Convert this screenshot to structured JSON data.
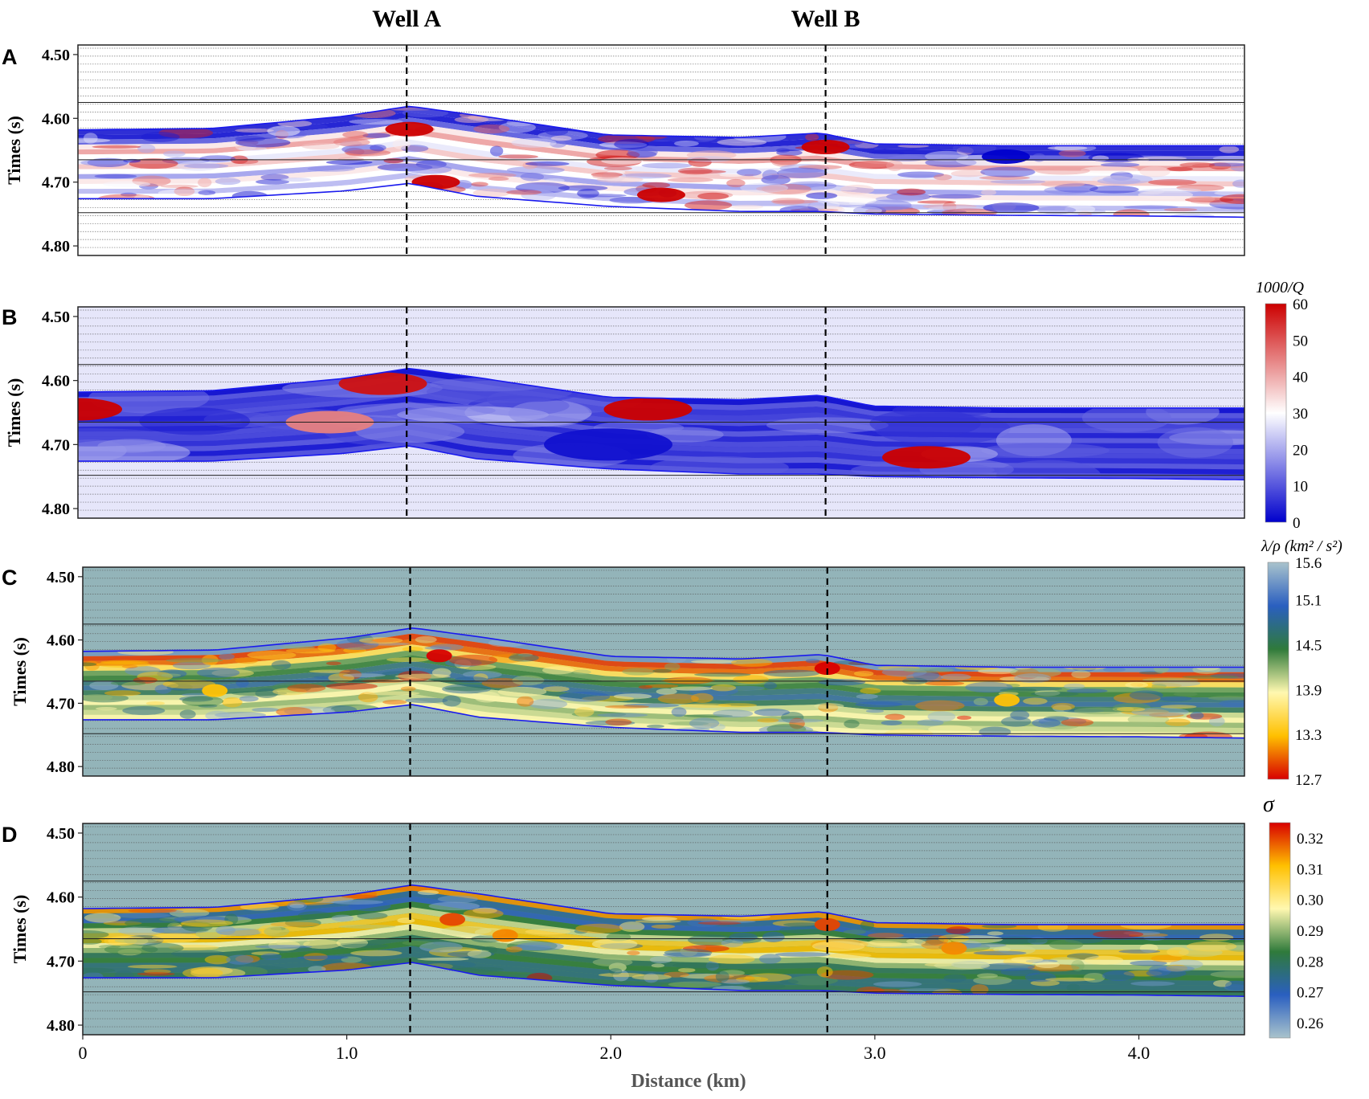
{
  "figure": {
    "well_labels": [
      "Well A",
      "Well B"
    ],
    "well_positions_km": [
      1.24,
      2.82
    ],
    "xlabel": "Distance (km)",
    "x_ticks": [
      "0",
      "1.0",
      "2.0",
      "3.0",
      "4.0"
    ],
    "x_tick_values": [
      0,
      1.0,
      2.0,
      3.0,
      4.0
    ],
    "xlim": [
      0,
      4.4
    ],
    "ylabel": "Times (s)",
    "y_ticks": [
      "4.50",
      "4.60",
      "4.70",
      "4.80"
    ],
    "y_tick_values": [
      4.5,
      4.6,
      4.7,
      4.8
    ],
    "ylim": [
      4.485,
      4.815
    ]
  },
  "horizons": {
    "x_km": [
      0,
      0.5,
      1.0,
      1.25,
      1.5,
      2.0,
      2.5,
      2.8,
      3.0,
      3.5,
      4.0,
      4.4
    ],
    "top_s": [
      4.618,
      4.616,
      4.597,
      4.581,
      4.595,
      4.626,
      4.63,
      4.623,
      4.64,
      4.643,
      4.643,
      4.643
    ],
    "bottom_s": [
      4.726,
      4.726,
      4.714,
      4.702,
      4.722,
      4.738,
      4.746,
      4.746,
      4.75,
      4.752,
      4.753,
      4.755
    ]
  },
  "chart_data": [
    {
      "panel": "A",
      "type": "heatmap",
      "colormap": [
        "#0000cc",
        "#ffffff",
        "#cc0000"
      ],
      "background": "#ffffff",
      "anomalies": [
        {
          "x_km": 1.25,
          "t_s": 4.617,
          "value": "high"
        },
        {
          "x_km": 1.35,
          "t_s": 4.7,
          "value": "high"
        },
        {
          "x_km": 2.2,
          "t_s": 4.72,
          "value": "high"
        },
        {
          "x_km": 2.82,
          "t_s": 4.645,
          "value": "high"
        },
        {
          "x_km": 3.5,
          "t_s": 4.66,
          "value": "low"
        }
      ]
    },
    {
      "panel": "B",
      "type": "heatmap",
      "colorbar_title": "1000/Q",
      "colorbar_ticks": [
        "60",
        "50",
        "40",
        "30",
        "20",
        "10",
        "0"
      ],
      "colorbar_range": [
        0,
        60
      ],
      "colormap": [
        "#0000cc",
        "#ffffff",
        "#cc0000"
      ],
      "background": "#e6e6fa",
      "anomalies": [
        {
          "x_km": 0.0,
          "t_s": 4.645,
          "value": 60
        },
        {
          "x_km": 1.15,
          "t_s": 4.605,
          "value": 58
        },
        {
          "x_km": 0.95,
          "t_s": 4.665,
          "value": 45
        },
        {
          "x_km": 2.15,
          "t_s": 4.645,
          "value": 60
        },
        {
          "x_km": 3.2,
          "t_s": 4.72,
          "value": 60
        },
        {
          "x_km": 2.0,
          "t_s": 4.7,
          "value": 2
        }
      ]
    },
    {
      "panel": "C",
      "type": "heatmap",
      "colorbar_title": "λ/ρ (km² / s²)",
      "colorbar_ticks": [
        "15.6",
        "15.1",
        "14.5",
        "13.9",
        "13.3",
        "12.7"
      ],
      "colorbar_range": [
        12.7,
        15.6
      ],
      "colormap": [
        "#d80000",
        "#ffc000",
        "#fff8b0",
        "#2f7a3b",
        "#2a5fc0",
        "#a9c3cc"
      ],
      "background": "#93b4b9",
      "anomalies": [
        {
          "x_km": 1.35,
          "t_s": 4.625,
          "value": 12.7
        },
        {
          "x_km": 2.82,
          "t_s": 4.645,
          "value": 12.7
        },
        {
          "x_km": 0.5,
          "t_s": 4.68,
          "value": 13.3
        },
        {
          "x_km": 3.5,
          "t_s": 4.695,
          "value": 13.3
        }
      ]
    },
    {
      "panel": "D",
      "type": "heatmap",
      "colorbar_title": "σ",
      "colorbar_ticks": [
        "0.32",
        "0.31",
        "0.30",
        "0.29",
        "0.28",
        "0.27",
        "0.26"
      ],
      "colorbar_range": [
        0.255,
        0.325
      ],
      "colormap": [
        "#a9c3cc",
        "#2a5fc0",
        "#2f7a3b",
        "#fff8b0",
        "#ffc000",
        "#d80000"
      ],
      "background": "#93b4b9",
      "anomalies": [
        {
          "x_km": 1.4,
          "t_s": 4.635,
          "value": 0.32
        },
        {
          "x_km": 2.82,
          "t_s": 4.643,
          "value": 0.32
        },
        {
          "x_km": 1.6,
          "t_s": 4.66,
          "value": 0.315
        },
        {
          "x_km": 3.3,
          "t_s": 4.68,
          "value": 0.315
        }
      ]
    }
  ]
}
